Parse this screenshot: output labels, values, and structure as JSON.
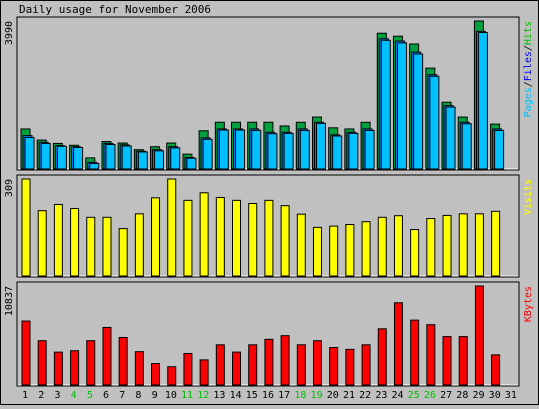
{
  "chart_data": [
    {
      "type": "bar",
      "title": "Daily usage for November 2006",
      "categories": [
        "1",
        "2",
        "3",
        "4",
        "5",
        "6",
        "7",
        "8",
        "9",
        "10",
        "11",
        "12",
        "13",
        "14",
        "15",
        "16",
        "17",
        "18",
        "19",
        "20",
        "21",
        "22",
        "23",
        "24",
        "25",
        "26",
        "27",
        "28",
        "29",
        "30",
        "31"
      ],
      "weekend_days": [
        "4",
        "5",
        "11",
        "12",
        "18",
        "19",
        "25",
        "26"
      ],
      "ylabel": "Pages/Files/Hits",
      "ylabel_parts": [
        {
          "text": "Pages",
          "color": "#00c0ff"
        },
        {
          "text": "/",
          "color": "#000000"
        },
        {
          "text": "Files",
          "color": "#0000ff"
        },
        {
          "text": "/",
          "color": "#000000"
        },
        {
          "text": "Hits",
          "color": "#00c000"
        }
      ],
      "ymax_label": "3990",
      "ylim": [
        0,
        3990
      ],
      "series": [
        {
          "name": "Hits",
          "color": "#00a040",
          "values": [
            1080,
            780,
            690,
            640,
            300,
            740,
            700,
            520,
            600,
            700,
            400,
            1030,
            1260,
            1260,
            1260,
            1260,
            1160,
            1260,
            1400,
            1110,
            1080,
            1260,
            3660,
            3580,
            3370,
            2720,
            1800,
            1400,
            3990,
            1210,
            null
          ]
        },
        {
          "name": "Files",
          "color": "#0080ff",
          "values": [
            900,
            720,
            630,
            600,
            180,
            690,
            650,
            480,
            520,
            600,
            310,
            840,
            1080,
            1080,
            1080,
            990,
            990,
            1080,
            1260,
            920,
            990,
            1080,
            3510,
            3450,
            3150,
            2540,
            1710,
            1260,
            3710,
            1080,
            null
          ]
        },
        {
          "name": "Pages",
          "color": "#00c0ff",
          "values": [
            850,
            690,
            610,
            580,
            150,
            660,
            620,
            460,
            490,
            570,
            290,
            800,
            1050,
            1050,
            1040,
            950,
            960,
            1040,
            1230,
            890,
            960,
            1040,
            3470,
            3400,
            3100,
            2500,
            1670,
            1220,
            3680,
            1040,
            null
          ]
        }
      ]
    },
    {
      "type": "bar",
      "ylabel": "Visits",
      "ylabel_color": "#ffff00",
      "ymax_label": "309",
      "ylim": [
        0,
        309
      ],
      "series": [
        {
          "name": "Visits",
          "color": "#ffff00",
          "values": [
            309,
            208,
            228,
            215,
            187,
            187,
            151,
            198,
            249,
            309,
            241,
            265,
            250,
            241,
            231,
            241,
            224,
            197,
            155,
            159,
            164,
            173,
            187,
            192,
            148,
            183,
            193,
            198,
            198,
            206,
            null
          ]
        }
      ]
    },
    {
      "type": "bar",
      "ylabel": "KBytes",
      "ylabel_color": "#ff0000",
      "ymax_label": "10837",
      "ylim": [
        0,
        10837
      ],
      "series": [
        {
          "name": "KBytes",
          "color": "#ff0000",
          "values": [
            7000,
            4850,
            3600,
            3750,
            4850,
            6300,
            5200,
            3650,
            2350,
            2000,
            3450,
            2750,
            4400,
            3600,
            4400,
            5000,
            5400,
            4400,
            4850,
            4100,
            3900,
            4400,
            6150,
            9000,
            7100,
            6600,
            5300,
            5300,
            10837,
            3300,
            null
          ]
        }
      ]
    }
  ]
}
